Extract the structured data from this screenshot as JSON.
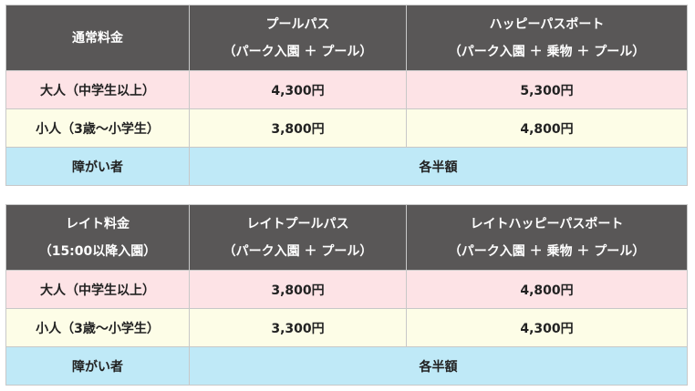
{
  "regular": {
    "header": {
      "col1": "通常料金",
      "col2_line1": "プールパス",
      "col2_line2": "（パーク入園 ＋ プール）",
      "col3_line1": "ハッピーパスポート",
      "col3_line2": "（パーク入園 ＋ 乗物 ＋ プール）"
    },
    "rows": [
      {
        "label": "大人（中学生以上）",
        "pool": "4,300円",
        "passport": "5,300円"
      },
      {
        "label": "小人（3歳～小学生）",
        "pool": "3,800円",
        "passport": "4,800円"
      }
    ],
    "disabled": {
      "label": "障がい者",
      "value": "各半額"
    }
  },
  "late": {
    "header": {
      "col1_line1": "レイト料金",
      "col1_line2": "（15:00以降入園）",
      "col2_line1": "レイトプールパス",
      "col2_line2": "（パーク入園 ＋ プール）",
      "col3_line1": "レイトハッピーパスポート",
      "col3_line2": "（パーク入園 ＋ 乗物 ＋ プール）"
    },
    "rows": [
      {
        "label": "大人（中学生以上）",
        "pool": "3,800円",
        "passport": "4,800円"
      },
      {
        "label": "小人（3歳～小学生）",
        "pool": "3,300円",
        "passport": "4,300円"
      }
    ],
    "disabled": {
      "label": "障がい者",
      "value": "各半額"
    }
  }
}
